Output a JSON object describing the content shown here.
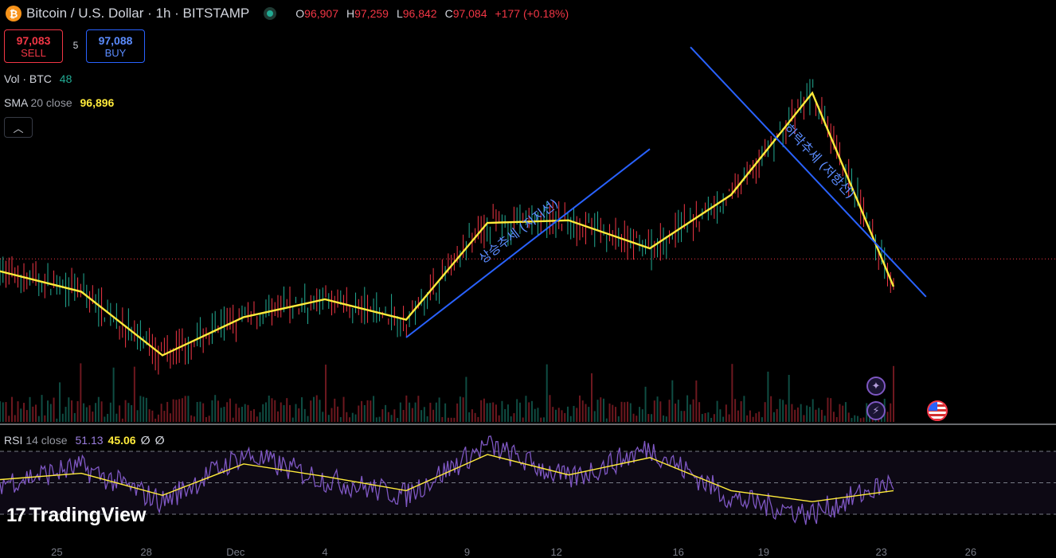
{
  "header": {
    "symbol_icon": "bitcoin-icon",
    "title": "Bitcoin / U.S. Dollar · 1h · BITSTAMP",
    "ohlc": [
      {
        "k": "O",
        "v": "96,907"
      },
      {
        "k": "H",
        "v": "97,259"
      },
      {
        "k": "L",
        "v": "96,842"
      },
      {
        "k": "C",
        "v": "97,084"
      }
    ],
    "change": "+177 (+0.18%)"
  },
  "trade": {
    "sell_price": "97,083",
    "sell_label": "SELL",
    "spread": "5",
    "buy_price": "97,088",
    "buy_label": "BUY"
  },
  "legends": {
    "vol_label": "Vol · BTC",
    "vol_value": "48",
    "sma_label": "SMA",
    "sma_params": "20 close",
    "sma_value": "96,896",
    "collapse_icon": "chevron-up-icon"
  },
  "rsi": {
    "label": "RSI",
    "params": "14 close",
    "rsi_value": "51.13",
    "ma_value": "45.06",
    "extra1": "∅",
    "extra2": "∅"
  },
  "branding": {
    "logo_mark": "17",
    "logo_text": "TradingView"
  },
  "icons": {
    "assistant": "sparkle-icon",
    "alerts": "lightning-icon",
    "event": "us-flag-icon"
  },
  "chart_data": [
    {
      "type": "candlestick",
      "x_ticks": [
        "25",
        "28",
        "Dec",
        "4",
        "9",
        "12",
        "16",
        "19",
        "23",
        "26"
      ],
      "series": [
        {
          "name": "SMA 20 close",
          "x": [
            0,
            2,
            4,
            6,
            8,
            10,
            12,
            14,
            16,
            18,
            20,
            22
          ],
          "y": [
            96600,
            95800,
            93300,
            94800,
            95500,
            94700,
            98500,
            98600,
            97500,
            99600,
            103600,
            96000
          ]
        }
      ],
      "annotations": [
        {
          "text": "상승추세 (지지선)",
          "from": [
            10.0,
            94000
          ],
          "to": [
            16.0,
            101400
          ]
        },
        {
          "text": "하락추세 (저항선)",
          "from": [
            17.0,
            105400
          ],
          "to": [
            22.8,
            95600
          ]
        }
      ],
      "last_price": 97084,
      "colors": {
        "up": "#22ab94",
        "down": "#f23645",
        "sma": "#ffeb3b",
        "trend": "#2962ff"
      }
    },
    {
      "type": "line",
      "series": [
        {
          "name": "RSI",
          "x": [
            0,
            2,
            4,
            6,
            8,
            10,
            12,
            14,
            16,
            18,
            20,
            22
          ],
          "y": [
            50,
            60,
            38,
            68,
            52,
            42,
            74,
            52,
            72,
            40,
            30,
            51
          ]
        },
        {
          "name": "RSI-based MA",
          "x": [
            0,
            2,
            4,
            6,
            8,
            10,
            12,
            14,
            16,
            18,
            20,
            22
          ],
          "y": [
            52,
            56,
            42,
            62,
            54,
            45,
            68,
            55,
            66,
            45,
            38,
            45
          ]
        }
      ],
      "levels": [
        70,
        50,
        30
      ],
      "colors": {
        "rsi": "#7e57c2",
        "ma": "#ffeb3b"
      }
    }
  ]
}
